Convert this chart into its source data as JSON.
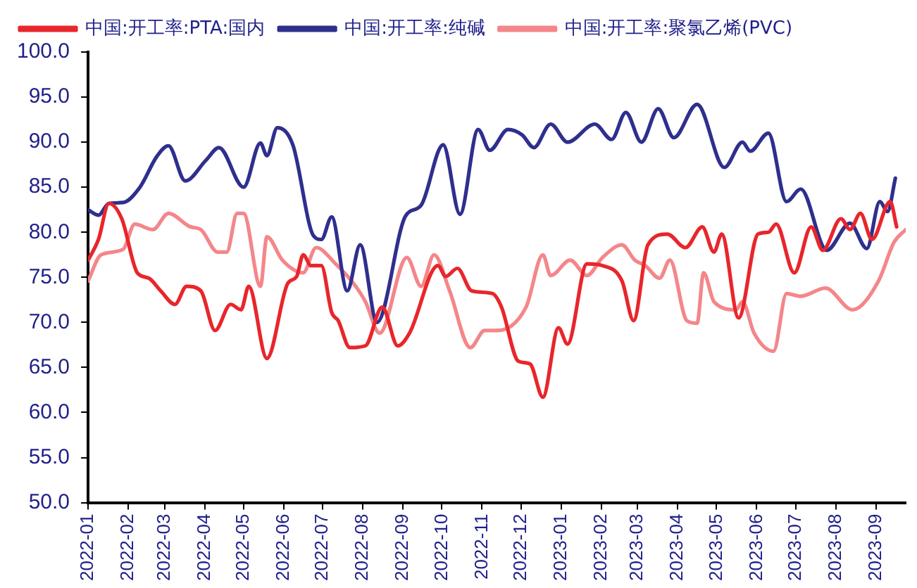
{
  "chart_data": {
    "type": "line",
    "legend": "top left",
    "grid": false,
    "marker": "none",
    "line_style": "solid",
    "xlim": [
      "2022-01-01",
      "2023-09-24"
    ],
    "xticks": [
      "2022-01",
      "2022-02",
      "2022-03",
      "2022-04",
      "2022-05",
      "2022-06",
      "2022-07",
      "2022-08",
      "2022-09",
      "2022-10",
      "2022-11",
      "2022-12",
      "2023-01",
      "2023-02",
      "2023-03",
      "2023-04",
      "2023-05",
      "2023-06",
      "2023-07",
      "2023-08",
      "2023-09"
    ],
    "ylim": [
      50,
      100
    ],
    "yticks": [
      {
        "value": 50,
        "label": "50.0"
      },
      {
        "value": 55,
        "label": "55.0"
      },
      {
        "value": 60,
        "label": "60.0"
      },
      {
        "value": 65,
        "label": "65.0"
      },
      {
        "value": 70,
        "label": "70.0"
      },
      {
        "value": 75,
        "label": "75.0"
      },
      {
        "value": 80,
        "label": "80.0"
      },
      {
        "value": 85,
        "label": "85.0"
      },
      {
        "value": 90,
        "label": "90.0"
      },
      {
        "value": 95,
        "label": "95.0"
      },
      {
        "value": 100,
        "label": "100.0"
      }
    ],
    "series": [
      {
        "name": "中国:开工率:PTA:国内",
        "color": "#e8262b",
        "x": [
          "2022-01-01",
          "2022-01-09",
          "2022-01-17",
          "2022-01-27",
          "2022-02-08",
          "2022-02-17",
          "2022-02-26",
          "2022-03-09",
          "2022-03-18",
          "2022-03-29",
          "2022-04-09",
          "2022-04-21",
          "2022-04-29",
          "2022-05-05",
          "2022-05-19",
          "2022-06-04",
          "2022-06-11",
          "2022-06-16",
          "2022-06-22",
          "2022-06-30",
          "2022-07-08",
          "2022-07-13",
          "2022-07-22",
          "2022-08-03",
          "2022-08-16",
          "2022-08-28",
          "2022-09-06",
          "2022-09-28",
          "2022-10-04",
          "2022-10-13",
          "2022-10-24",
          "2022-11-09",
          "2022-11-16",
          "2022-11-29",
          "2022-12-08",
          "2022-12-18",
          "2022-12-30",
          "2023-01-06",
          "2023-01-21",
          "2023-02-02",
          "2023-02-17",
          "2023-02-26",
          "2023-03-09",
          "2023-03-24",
          "2023-04-07",
          "2023-04-20",
          "2023-04-29",
          "2023-05-05",
          "2023-05-18",
          "2023-06-02",
          "2023-06-10",
          "2023-06-16",
          "2023-06-30",
          "2023-07-13",
          "2023-07-22",
          "2023-08-05",
          "2023-08-12",
          "2023-08-20",
          "2023-08-29",
          "2023-09-12",
          "2023-09-17"
        ],
        "values": [
          76.9,
          79.2,
          83.2,
          81.5,
          75.5,
          74.9,
          73.5,
          72,
          74,
          73.5,
          69.1,
          72,
          71.4,
          74,
          66,
          74.3,
          75.1,
          77.5,
          76.3,
          76.3,
          71.1,
          70.2,
          67.2,
          67.4,
          71.7,
          67.4,
          68.8,
          76.3,
          75.1,
          76,
          73.5,
          73.2,
          71.7,
          65.7,
          65.4,
          61.7,
          69.4,
          67.6,
          76.5,
          76.3,
          74.6,
          70.2,
          78.6,
          79.8,
          78.3,
          80.6,
          77.8,
          79.8,
          70.5,
          79.8,
          80,
          80.9,
          75.5,
          80.6,
          78,
          81.5,
          80.3,
          82.1,
          79.2,
          83.4,
          80.6
        ]
      },
      {
        "name": "中国:开工率:纯碱",
        "color": "#2f2f8e",
        "x": [
          "2022-01-01",
          "2022-01-09",
          "2022-01-17",
          "2022-01-28",
          "2022-02-10",
          "2022-02-23",
          "2022-03-04",
          "2022-03-17",
          "2022-04-02",
          "2022-04-12",
          "2022-05-01",
          "2022-05-14",
          "2022-05-19",
          "2022-05-27",
          "2022-06-08",
          "2022-06-24",
          "2022-06-30",
          "2022-07-08",
          "2022-07-20",
          "2022-07-30",
          "2022-08-12",
          "2022-09-03",
          "2022-09-15",
          "2022-10-02",
          "2022-10-15",
          "2022-10-29",
          "2022-11-07",
          "2022-11-21",
          "2022-12-02",
          "2022-12-11",
          "2022-12-24",
          "2023-01-06",
          "2023-01-27",
          "2023-02-09",
          "2023-02-20",
          "2023-03-04",
          "2023-03-17",
          "2023-03-29",
          "2023-04-16",
          "2023-05-07",
          "2023-05-21",
          "2023-05-27",
          "2023-06-10",
          "2023-06-24",
          "2023-07-05",
          "2023-07-25",
          "2023-08-12",
          "2023-08-25",
          "2023-09-04",
          "2023-09-10",
          "2023-09-16"
        ],
        "values": [
          82.5,
          81.9,
          83.2,
          83.3,
          85,
          88.4,
          89.6,
          85.7,
          88,
          89.4,
          85,
          89.9,
          88.5,
          91.6,
          89.7,
          79.6,
          79.2,
          81.7,
          73.5,
          78.6,
          70,
          81.8,
          83,
          89.7,
          82,
          91.4,
          89.1,
          91.4,
          90.8,
          89.4,
          92,
          90,
          92,
          90.3,
          93.3,
          90,
          93.7,
          90.5,
          94.2,
          87.2,
          90,
          89,
          91,
          83.4,
          84.8,
          78,
          81,
          78.2,
          83.4,
          82.3,
          86
        ]
      },
      {
        "name": "中国:开工率:聚氯乙烯(PVC)",
        "color": "#f4868a",
        "x": [
          "2022-01-01",
          "2022-01-11",
          "2022-01-28",
          "2022-02-06",
          "2022-02-20",
          "2022-03-04",
          "2022-03-21",
          "2022-03-29",
          "2022-04-11",
          "2022-04-18",
          "2022-04-26",
          "2022-05-01",
          "2022-05-14",
          "2022-05-19",
          "2022-05-31",
          "2022-06-16",
          "2022-06-26",
          "2022-07-11",
          "2022-07-25",
          "2022-08-03",
          "2022-08-14",
          "2022-09-04",
          "2022-09-15",
          "2022-09-25",
          "2022-10-07",
          "2022-10-23",
          "2022-11-03",
          "2022-11-12",
          "2022-12-05",
          "2022-12-18",
          "2022-12-24",
          "2023-01-08",
          "2023-01-21",
          "2023-02-02",
          "2023-02-17",
          "2023-02-27",
          "2023-03-07",
          "2023-03-18",
          "2023-03-26",
          "2023-04-08",
          "2023-04-16",
          "2023-04-21",
          "2023-04-29",
          "2023-05-16",
          "2023-05-21",
          "2023-05-30",
          "2023-06-14",
          "2023-06-24",
          "2023-07-05",
          "2023-07-24",
          "2023-08-14",
          "2023-09-03",
          "2023-09-15",
          "2023-09-24"
        ],
        "values": [
          74.6,
          77.5,
          78.1,
          80.9,
          80.3,
          82.1,
          80.6,
          80.3,
          77.8,
          77.8,
          82.1,
          82.1,
          74,
          79.5,
          76.9,
          75.5,
          78.3,
          76.5,
          74.3,
          72.3,
          68.8,
          77.2,
          74,
          77.5,
          73.5,
          67.2,
          69.1,
          69.1,
          71.7,
          77.5,
          75.2,
          76.9,
          75.2,
          77.2,
          78.6,
          76.9,
          76.3,
          74.9,
          76.9,
          70.2,
          69.9,
          75.5,
          72.3,
          71.4,
          72.3,
          68.8,
          66.8,
          73.2,
          72.9,
          73.8,
          71.4,
          74.6,
          78.9,
          80.3
        ]
      }
    ]
  }
}
